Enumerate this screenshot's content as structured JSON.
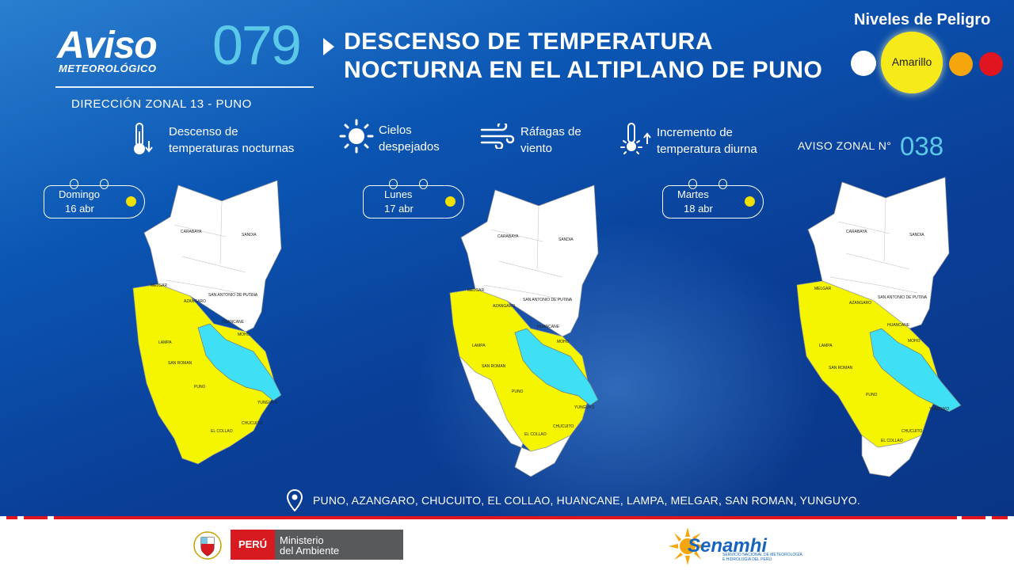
{
  "header": {
    "logo_title": "Aviso",
    "logo_subtitle": "METEOROLÓGICO",
    "aviso_number": "079",
    "title_line1": "DESCENSO DE TEMPERATURA",
    "title_line2": "NOCTURNA  EN EL ALTIPLANO DE PUNO",
    "direccion": "DIRECCIÓN  ZONAL 13 - PUNO"
  },
  "levels": {
    "title": "Niveles de Peligro",
    "active_label": "Amarillo",
    "colors": {
      "white": "#ffffff",
      "yellow": "#f7ea1a",
      "orange": "#f5a60c",
      "red": "#e0151f"
    }
  },
  "info": {
    "item1_line1": "Descenso de",
    "item1_line2": "temperaturas  nocturnas",
    "item2_line1": "Cielos",
    "item2_line2": "despejados",
    "item3_line1": "Ráfagas de",
    "item3_line2": "viento",
    "item4_line1": "Incremento de",
    "item4_line2": "temperatura  diurna",
    "icons": [
      "thermometer-down-icon",
      "sun-icon",
      "wind-icon",
      "thermometer-up-icon"
    ]
  },
  "aviso_zonal": {
    "label": "AVISO  ZONAL  N°",
    "number": "038"
  },
  "days": [
    {
      "name": "Domingo",
      "date": "16 abr"
    },
    {
      "name": "Lunes",
      "date": "17 abr"
    },
    {
      "name": "Martes",
      "date": "18 abr"
    }
  ],
  "map_labels": {
    "carabaya": "CARABAYA",
    "sandia": "SANDIA",
    "melgar": "MELGAR",
    "azangaro": "AZANGARO",
    "san_antonio": "SAN ANTONIO DE PUTINA",
    "huancane": "HUANCANE",
    "moho": "MOHO",
    "lampa": "LAMPA",
    "san_roman": "SAN ROMAN",
    "puno": "PUNO",
    "yunguyo": "YUNGUYO",
    "el_collao": "EL COLLAO",
    "chucuito": "CHUCUITO"
  },
  "map_colors": {
    "alert": "#f5f500",
    "lake": "#3fe0f5",
    "none": "#ffffff"
  },
  "provinces": "PUNO, AZANGARO,  CHUCUITO,  EL COLLAO, HUANCANE,  LAMPA,  MELGAR,  SAN ROMAN,  YUNGUYO.",
  "footer": {
    "peru": "PERÚ",
    "ministerio_line1": "Ministerio",
    "ministerio_line2": "del Ambiente",
    "senamhi": "Senamhi",
    "senamhi_sub_line1": "SERVICIO NACIONAL DE METEOROLOGÍA",
    "senamhi_sub_line2": "E HIDROLOGÍA DEL PERÚ"
  }
}
